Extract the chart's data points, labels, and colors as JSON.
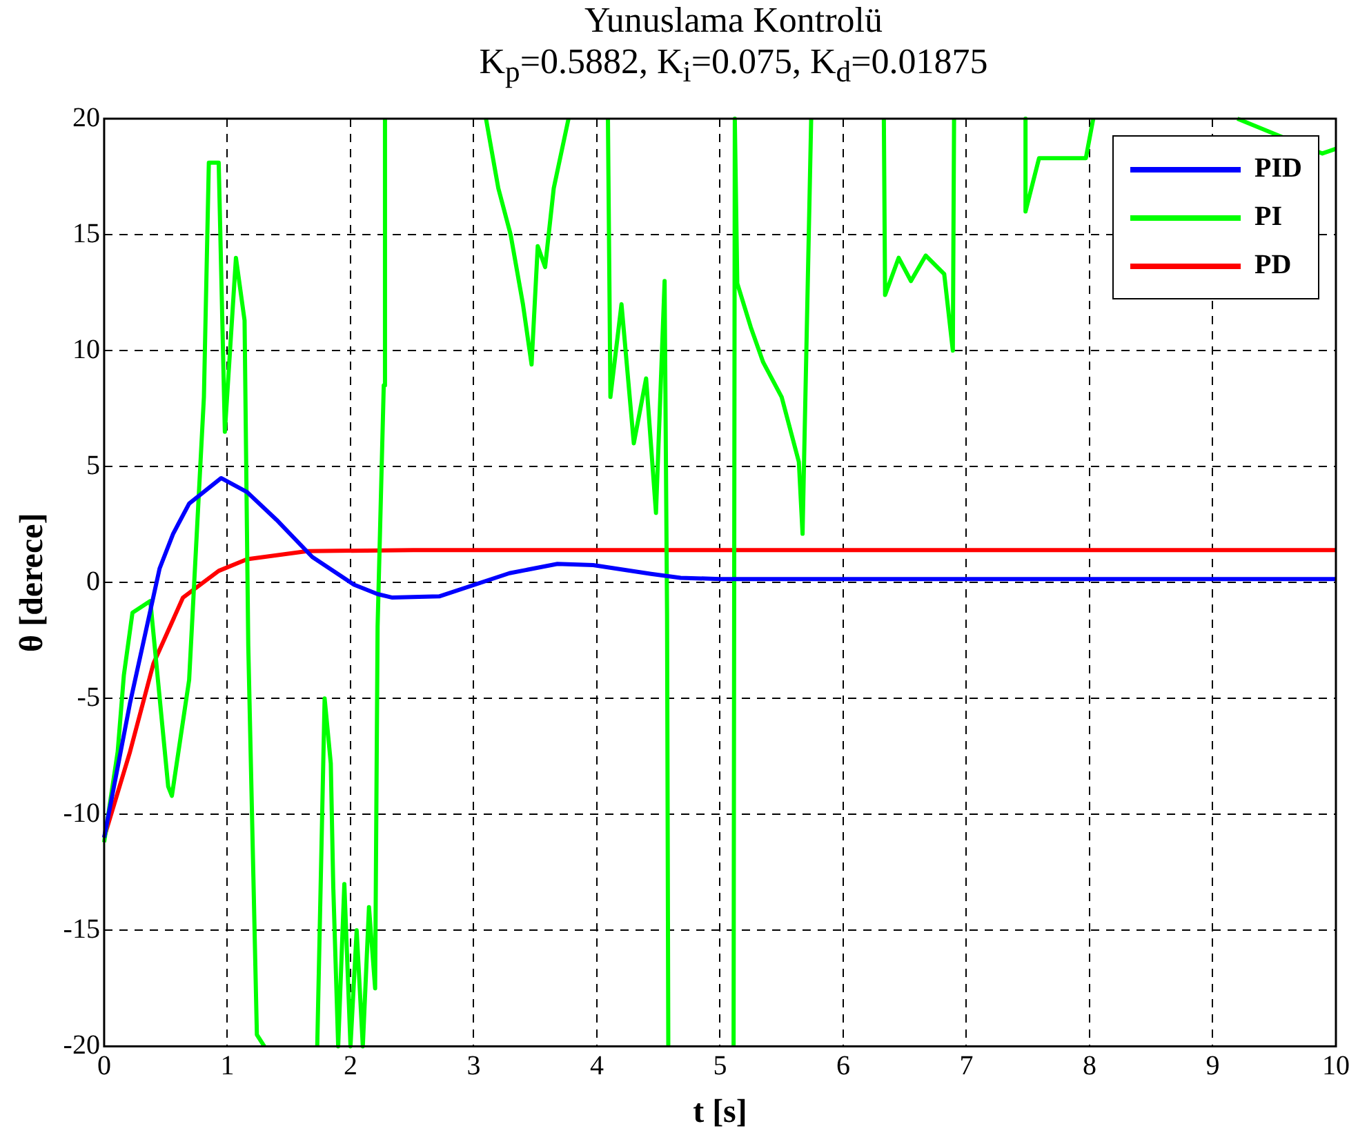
{
  "chart_data": {
    "type": "line",
    "title": "Yunuslama Kontrolü",
    "subtitle": "K$_{p}$=0.5882, K$_{i}$=0.075, K$_{d}$=0.01875",
    "xlabel": "t [s]",
    "ylabel": "θ [derece]",
    "xlim": [
      0,
      10
    ],
    "xticks": [
      0,
      1,
      2,
      3,
      4,
      5,
      6,
      7,
      8,
      9,
      10
    ],
    "ylim": [
      -20,
      20
    ],
    "yticks": [
      -20,
      -15,
      -10,
      -5,
      0,
      5,
      10,
      15,
      20
    ],
    "grid": true,
    "legend": "top right",
    "line_style": "solid",
    "series": [
      {
        "name": "PID",
        "color": "#0000ff",
        "x": [
          0,
          0.21,
          0.45,
          0.56,
          0.69,
          0.95,
          1.16,
          1.4,
          1.69,
          2.03,
          2.22,
          2.34,
          2.72,
          3.29,
          3.68,
          3.97,
          4.44,
          4.68,
          5,
          6,
          7,
          8,
          9,
          10
        ],
        "values": [
          -11,
          -5.2,
          0.6,
          2.1,
          3.4,
          4.5,
          3.9,
          2.7,
          1.1,
          -0.1,
          -0.5,
          -0.65,
          -0.6,
          0.4,
          0.8,
          0.75,
          0.37,
          0.2,
          0.15,
          0.15,
          0.15,
          0.15,
          0.15,
          0.15
        ]
      },
      {
        "name": "PI",
        "color": "#00ff00",
        "x": [
          0,
          0.11,
          0.16,
          0.23,
          0.375,
          0.52,
          0.55,
          0.69,
          0.81,
          0.85,
          0.93,
          0.98,
          1.07,
          1.14,
          1.17,
          1.24,
          1.3,
          1.5,
          1.73,
          1.79,
          1.84,
          1.86,
          1.9,
          1.95,
          2.0,
          2.05,
          2.1,
          2.15,
          2.2,
          2.22,
          2.27,
          2.28,
          2.7,
          3.1,
          3.2,
          3.3,
          3.4,
          3.47,
          3.52,
          3.58,
          3.65,
          3.77,
          3.9,
          4.09,
          4.11,
          4.2,
          4.3,
          4.4,
          4.48,
          4.55,
          4.57,
          4.58,
          4.85,
          5.11,
          5.12,
          5.14,
          5.25,
          5.35,
          5.5,
          5.64,
          5.67,
          5.74,
          6.0,
          6.33,
          6.34,
          6.45,
          6.55,
          6.67,
          6.82,
          6.89,
          6.9,
          7.2,
          7.48,
          7.48,
          7.59,
          7.97,
          8.03,
          8.04,
          9.19,
          9.2,
          9.89,
          10
        ],
        "values": [
          -11.2,
          -7.3,
          -4,
          -1.3,
          -0.8,
          -8.8,
          -9.2,
          -4.2,
          8,
          18.1,
          18.1,
          6.5,
          14,
          11.3,
          -2.7,
          -19.5,
          -20,
          null,
          -20,
          -5,
          -7.8,
          -13.1,
          -20,
          -13,
          -20,
          -15,
          -20,
          -14,
          -17.5,
          -1.9,
          8.5,
          20,
          null,
          20,
          17,
          15,
          12,
          9.4,
          14.5,
          13.6,
          17,
          20,
          null,
          20,
          8,
          12,
          6,
          8.8,
          3,
          13,
          -1.4,
          -20,
          null,
          -20,
          20,
          12.9,
          11,
          9.5,
          8,
          5.2,
          2.1,
          20,
          null,
          20,
          12.4,
          14,
          13,
          14.1,
          13.3,
          10,
          20,
          null,
          20,
          16,
          18.3,
          18.3,
          20,
          null,
          null,
          20,
          18.5,
          18.7
        ]
      },
      {
        "name": "PD",
        "color": "#ff0000",
        "x": [
          0,
          0.21,
          0.4,
          0.64,
          0.93,
          1.16,
          1.65,
          2.51,
          5,
          10
        ],
        "values": [
          -11,
          -7.3,
          -3.5,
          -0.65,
          0.5,
          1,
          1.35,
          1.4,
          1.4,
          1.4
        ]
      }
    ]
  }
}
